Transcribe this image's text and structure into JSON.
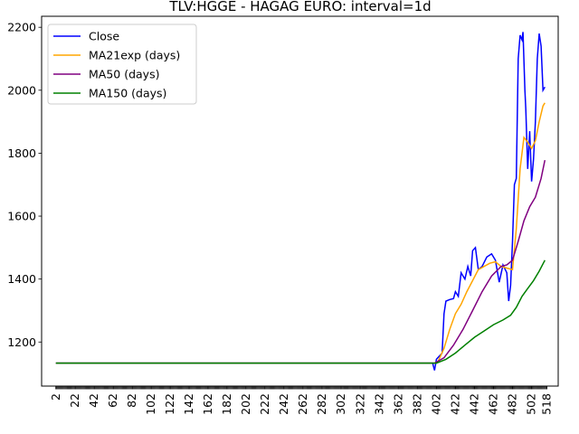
{
  "chart_data": {
    "type": "line",
    "title": "TLV:HGGE - HAGAG EURO: interval=1d",
    "xlabel": "",
    "ylabel": "",
    "xlim": [
      -13,
      530
    ],
    "ylim": [
      1060,
      2235
    ],
    "x_ticks": [
      2,
      22,
      42,
      62,
      82,
      102,
      122,
      142,
      162,
      182,
      202,
      222,
      242,
      262,
      282,
      302,
      322,
      342,
      362,
      382,
      402,
      422,
      442,
      462,
      482,
      502,
      518
    ],
    "y_ticks": [
      1200,
      1400,
      1600,
      1800,
      2000,
      2200
    ],
    "legend_position": "top-left",
    "grid": false,
    "series": [
      {
        "name": "Close",
        "color": "#0000ff",
        "points": [
          [
            2,
            1133
          ],
          [
            398,
            1133
          ],
          [
            400,
            1110
          ],
          [
            402,
            1145
          ],
          [
            405,
            1155
          ],
          [
            408,
            1165
          ],
          [
            410,
            1290
          ],
          [
            412,
            1330
          ],
          [
            416,
            1335
          ],
          [
            420,
            1338
          ],
          [
            422,
            1360
          ],
          [
            425,
            1345
          ],
          [
            428,
            1420
          ],
          [
            432,
            1400
          ],
          [
            435,
            1440
          ],
          [
            438,
            1410
          ],
          [
            440,
            1490
          ],
          [
            443,
            1500
          ],
          [
            446,
            1430
          ],
          [
            450,
            1440
          ],
          [
            455,
            1470
          ],
          [
            460,
            1480
          ],
          [
            464,
            1460
          ],
          [
            468,
            1390
          ],
          [
            472,
            1445
          ],
          [
            476,
            1420
          ],
          [
            478,
            1330
          ],
          [
            480,
            1380
          ],
          [
            482,
            1520
          ],
          [
            484,
            1700
          ],
          [
            486,
            1720
          ],
          [
            488,
            2100
          ],
          [
            490,
            2175
          ],
          [
            492,
            2160
          ],
          [
            493,
            2185
          ],
          [
            495,
            2000
          ],
          [
            496,
            1940
          ],
          [
            498,
            1750
          ],
          [
            500,
            1870
          ],
          [
            502,
            1710
          ],
          [
            504,
            1780
          ],
          [
            506,
            1900
          ],
          [
            508,
            2100
          ],
          [
            510,
            2180
          ],
          [
            512,
            2140
          ],
          [
            514,
            2000
          ],
          [
            516,
            2010
          ]
        ]
      },
      {
        "name": "MA21exp (days)",
        "color": "#ffa500",
        "points": [
          [
            2,
            1133
          ],
          [
            400,
            1133
          ],
          [
            404,
            1140
          ],
          [
            410,
            1180
          ],
          [
            416,
            1240
          ],
          [
            422,
            1290
          ],
          [
            428,
            1320
          ],
          [
            434,
            1360
          ],
          [
            440,
            1395
          ],
          [
            446,
            1430
          ],
          [
            452,
            1440
          ],
          [
            458,
            1450
          ],
          [
            464,
            1455
          ],
          [
            470,
            1440
          ],
          [
            476,
            1435
          ],
          [
            482,
            1430
          ],
          [
            486,
            1560
          ],
          [
            490,
            1750
          ],
          [
            494,
            1850
          ],
          [
            498,
            1835
          ],
          [
            502,
            1815
          ],
          [
            506,
            1840
          ],
          [
            510,
            1900
          ],
          [
            514,
            1950
          ],
          [
            516,
            1960
          ]
        ]
      },
      {
        "name": "MA50 (days)",
        "color": "#800080",
        "points": [
          [
            2,
            1133
          ],
          [
            400,
            1133
          ],
          [
            410,
            1150
          ],
          [
            420,
            1190
          ],
          [
            430,
            1240
          ],
          [
            440,
            1300
          ],
          [
            450,
            1360
          ],
          [
            460,
            1410
          ],
          [
            470,
            1440
          ],
          [
            476,
            1445
          ],
          [
            482,
            1460
          ],
          [
            488,
            1520
          ],
          [
            494,
            1585
          ],
          [
            500,
            1630
          ],
          [
            506,
            1660
          ],
          [
            512,
            1720
          ],
          [
            516,
            1778
          ]
        ]
      },
      {
        "name": "MA150 (days)",
        "color": "#008000",
        "points": [
          [
            2,
            1133
          ],
          [
            402,
            1133
          ],
          [
            412,
            1145
          ],
          [
            422,
            1165
          ],
          [
            432,
            1190
          ],
          [
            442,
            1215
          ],
          [
            452,
            1235
          ],
          [
            462,
            1255
          ],
          [
            472,
            1270
          ],
          [
            480,
            1285
          ],
          [
            486,
            1310
          ],
          [
            492,
            1345
          ],
          [
            498,
            1370
          ],
          [
            504,
            1395
          ],
          [
            510,
            1425
          ],
          [
            516,
            1460
          ]
        ]
      }
    ]
  }
}
